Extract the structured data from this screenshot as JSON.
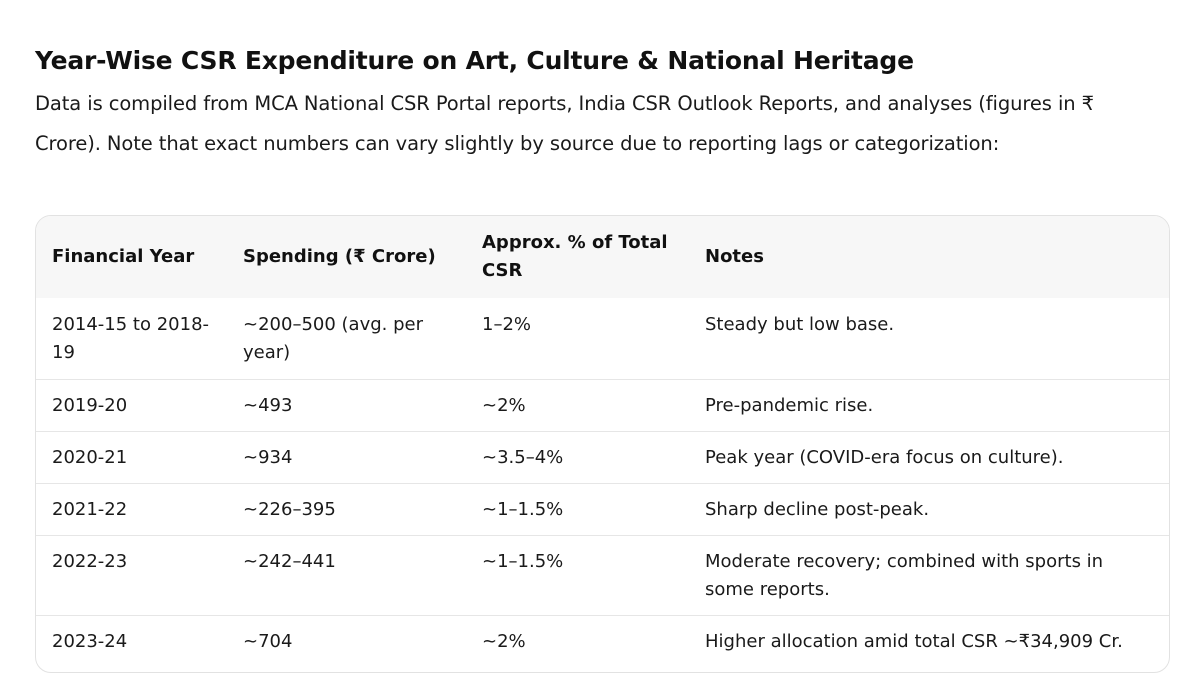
{
  "heading": "Year-Wise CSR Expenditure on Art, Culture & National Heritage",
  "intro": "Data is compiled from MCA National CSR Portal reports, India CSR Outlook Reports, and analyses (figures in ₹ Crore). Note that exact numbers can vary slightly by source due to reporting lags or categorization:",
  "table": {
    "headers": [
      "Financial Year",
      "Spending (₹ Crore)",
      "Approx. % of Total CSR",
      "Notes"
    ],
    "rows": [
      [
        "2014-15 to 2018-19",
        "~200–500 (avg. per year)",
        "1–2%",
        "Steady but low base."
      ],
      [
        "2019-20",
        "~493",
        "~2%",
        "Pre-pandemic rise."
      ],
      [
        "2020-21",
        "~934",
        "~3.5–4%",
        "Peak year (COVID-era focus on culture)."
      ],
      [
        "2021-22",
        "~226–395",
        "~1–1.5%",
        "Sharp decline post-peak."
      ],
      [
        "2022-23",
        "~242–441",
        "~1–1.5%",
        "Moderate recovery; combined with sports in some reports."
      ],
      [
        "2023-24",
        "~704",
        "~2%",
        "Higher allocation amid total CSR ~₹34,909 Cr."
      ]
    ]
  }
}
